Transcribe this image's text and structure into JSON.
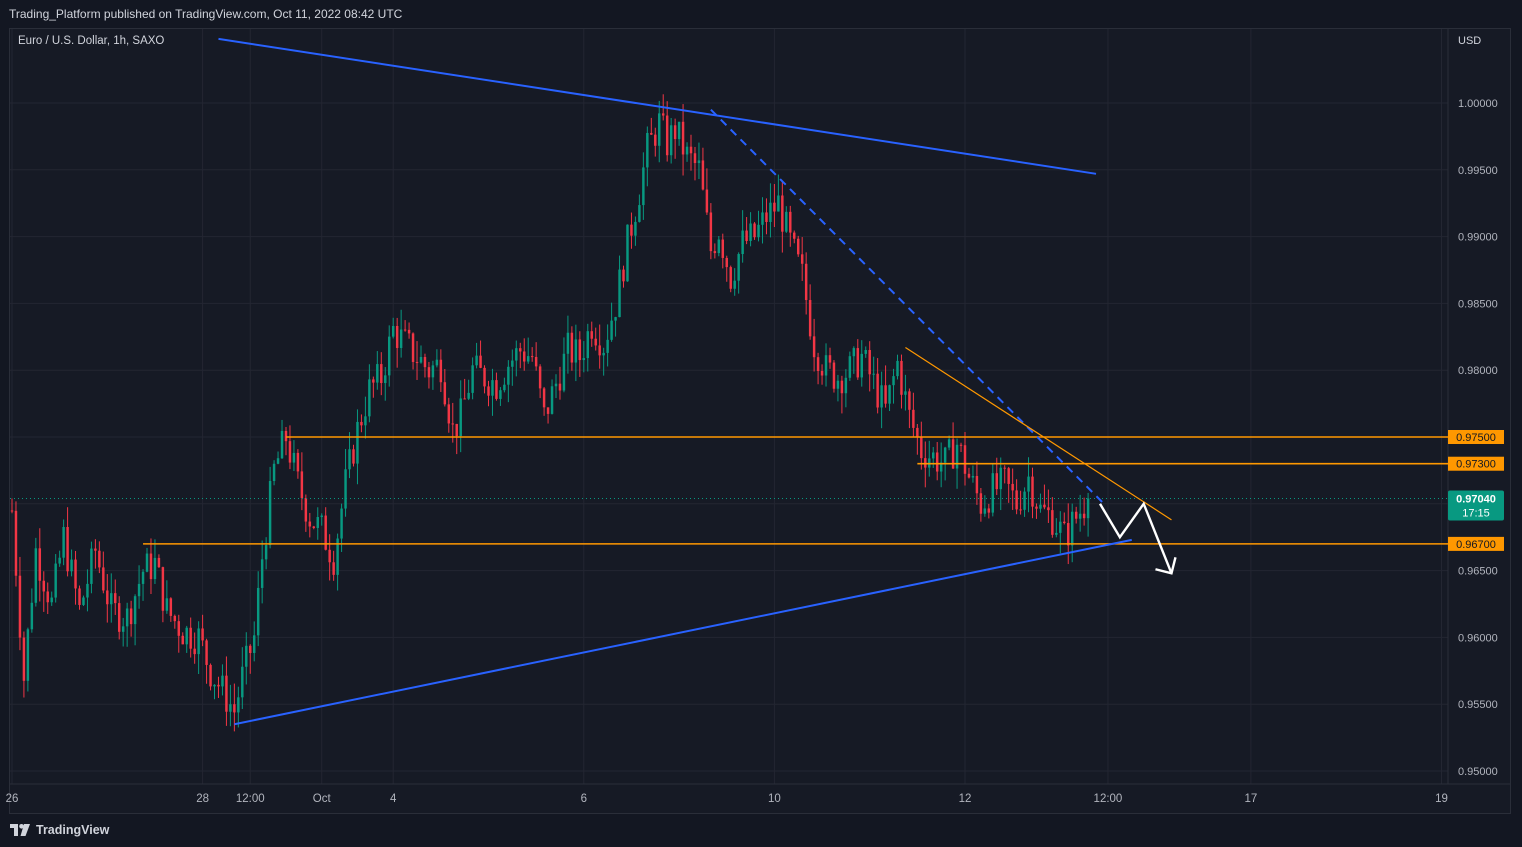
{
  "header": {
    "published_text": "Trading_Platform published on TradingView.com, Oct 11, 2022 08:42 UTC"
  },
  "chart_data": {
    "type": "candlestick",
    "symbol_label": "Euro / U.S. Dollar, 1h, SAXO",
    "currency": "USD",
    "ylim": [
      0.9485,
      1.0055
    ],
    "y_ticks": [
      "1.00000",
      "0.99500",
      "0.99000",
      "0.98500",
      "0.98000",
      "0.97500",
      "0.97000",
      "0.96500",
      "0.96000",
      "0.95500",
      "0.95000"
    ],
    "x_ticks": [
      {
        "label": "26",
        "t": 0
      },
      {
        "label": "28",
        "t": 48
      },
      {
        "label": "12:00",
        "t": 60
      },
      {
        "label": "Oct",
        "t": 78
      },
      {
        "label": "4",
        "t": 96
      },
      {
        "label": "6",
        "t": 144
      },
      {
        "label": "10",
        "t": 192
      },
      {
        "label": "12",
        "t": 240
      },
      {
        "label": "12:00",
        "t": 276
      },
      {
        "label": "17",
        "t": 312
      },
      {
        "label": "19",
        "t": 360
      }
    ],
    "price_path": [
      [
        0,
        0.9695
      ],
      [
        3,
        0.957
      ],
      [
        6,
        0.9665
      ],
      [
        10,
        0.9625
      ],
      [
        13,
        0.9675
      ],
      [
        17,
        0.962
      ],
      [
        21,
        0.9665
      ],
      [
        25,
        0.962
      ],
      [
        29,
        0.9615
      ],
      [
        33,
        0.965
      ],
      [
        36,
        0.9655
      ],
      [
        39,
        0.962
      ],
      [
        43,
        0.9605
      ],
      [
        47,
        0.96
      ],
      [
        50,
        0.9575
      ],
      [
        53,
        0.956
      ],
      [
        56,
        0.9545
      ],
      [
        58,
        0.957
      ],
      [
        61,
        0.96
      ],
      [
        63,
        0.966
      ],
      [
        66,
        0.9725
      ],
      [
        69,
        0.975
      ],
      [
        72,
        0.9715
      ],
      [
        75,
        0.969
      ],
      [
        78,
        0.968
      ],
      [
        81,
        0.966
      ],
      [
        84,
        0.9715
      ],
      [
        87,
        0.9755
      ],
      [
        90,
        0.9785
      ],
      [
        93,
        0.9795
      ],
      [
        96,
        0.983
      ],
      [
        99,
        0.982
      ],
      [
        102,
        0.981
      ],
      [
        105,
        0.98
      ],
      [
        108,
        0.9805
      ],
      [
        111,
        0.9755
      ],
      [
        113,
        0.9765
      ],
      [
        116,
        0.98
      ],
      [
        119,
        0.9795
      ],
      [
        122,
        0.979
      ],
      [
        125,
        0.9805
      ],
      [
        128,
        0.9815
      ],
      [
        131,
        0.981
      ],
      [
        134,
        0.9765
      ],
      [
        137,
        0.979
      ],
      [
        140,
        0.9815
      ],
      [
        143,
        0.981
      ],
      [
        146,
        0.9835
      ],
      [
        149,
        0.982
      ],
      [
        152,
        0.985
      ],
      [
        155,
        0.9895
      ],
      [
        158,
        0.9935
      ],
      [
        160,
        0.9965
      ],
      [
        163,
        0.9985
      ],
      [
        165,
        0.997
      ],
      [
        167,
        0.998
      ],
      [
        170,
        0.996
      ],
      [
        173,
        0.995
      ],
      [
        176,
        0.989
      ],
      [
        178,
        0.9905
      ],
      [
        181,
        0.987
      ],
      [
        184,
        0.9895
      ],
      [
        187,
        0.99
      ],
      [
        190,
        0.9915
      ],
      [
        193,
        0.9925
      ],
      [
        196,
        0.9895
      ],
      [
        199,
        0.987
      ],
      [
        202,
        0.982
      ],
      [
        205,
        0.98
      ],
      [
        208,
        0.9795
      ],
      [
        211,
        0.98
      ],
      [
        214,
        0.981
      ],
      [
        217,
        0.979
      ],
      [
        220,
        0.977
      ],
      [
        223,
        0.9805
      ],
      [
        226,
        0.9765
      ],
      [
        229,
        0.974
      ],
      [
        232,
        0.9735
      ],
      [
        235,
        0.973
      ],
      [
        238,
        0.9745
      ],
      [
        241,
        0.972
      ],
      [
        244,
        0.97
      ],
      [
        247,
        0.971
      ],
      [
        250,
        0.9715
      ],
      [
        253,
        0.97
      ],
      [
        256,
        0.972
      ],
      [
        259,
        0.9695
      ],
      [
        262,
        0.969
      ],
      [
        265,
        0.9675
      ],
      [
        268,
        0.969
      ],
      [
        271,
        0.9704
      ]
    ],
    "horizontal_levels": [
      {
        "value": 0.975,
        "label": "0.97500",
        "color": "#ff9800",
        "from_t": 69
      },
      {
        "value": 0.973,
        "label": "0.97300",
        "color": "#ff9800",
        "from_t": 228
      },
      {
        "value": 0.967,
        "label": "0.96700",
        "color": "#ff9800",
        "from_t": 33
      }
    ],
    "current_price": {
      "value": 0.9704,
      "label": "0.97040",
      "countdown": "17:15",
      "color": "#089981"
    },
    "trendlines": [
      {
        "from": [
          52,
          1.0048
        ],
        "to": [
          273,
          0.9947
        ],
        "color": "#2962ff",
        "style": "solid"
      },
      {
        "from": [
          56,
          0.9535
        ],
        "to": [
          282,
          0.9673
        ],
        "color": "#2962ff",
        "style": "solid"
      },
      {
        "from": [
          176,
          0.9995
        ],
        "to": [
          275,
          0.97
        ],
        "color": "#2962ff",
        "style": "dashed"
      },
      {
        "from": [
          225,
          0.9817
        ],
        "to": [
          292,
          0.9688
        ],
        "color": "#ff9800",
        "style": "solid-thin"
      }
    ],
    "projection_path": [
      [
        274,
        0.97
      ],
      [
        279,
        0.9675
      ],
      [
        285,
        0.97
      ],
      [
        292,
        0.9648
      ]
    ],
    "colors": {
      "up": "#089981",
      "down": "#f23645",
      "background": "#161a25",
      "grid": "#232632"
    }
  }
}
